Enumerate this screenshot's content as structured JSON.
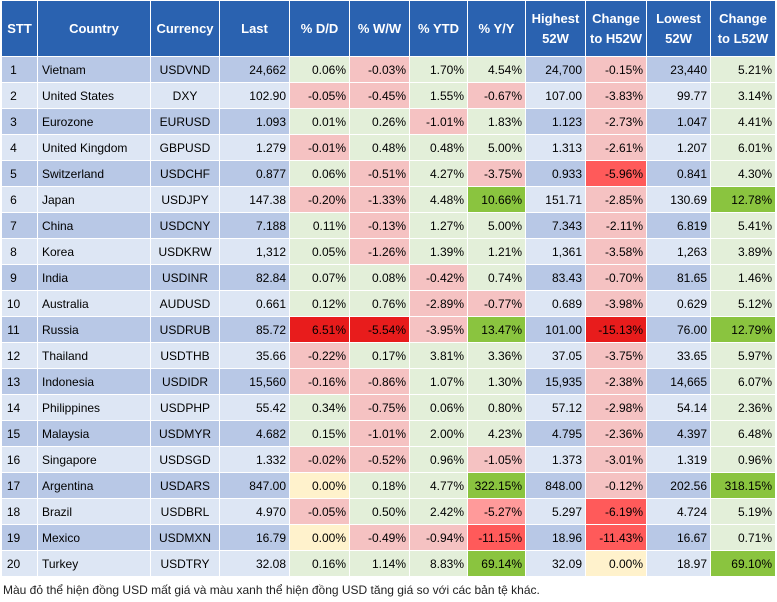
{
  "headers": [
    "STT",
    "Country",
    "Currency",
    "Last",
    "% D/D",
    "% W/W",
    "% YTD",
    "% Y/Y",
    "Highest 52W",
    "Change to H52W",
    "Lowest 52W",
    "Change to L52W"
  ],
  "colors": {
    "header_bg": "#2a62b0",
    "row_odd": "#b8c8e6",
    "row_even": "#dde6f4",
    "green_light": "#e3efd9",
    "green_bright": "#8ac43f",
    "red_light": "#f5c2c2",
    "red_mid": "#ff9a9a",
    "red_strong": "#ff5a5a",
    "red_deep": "#e81c1c",
    "yellow_light": "#fff2cc"
  },
  "rows": [
    {
      "stt": "1",
      "country": "Vietnam",
      "currency": "USDVND",
      "last": "24,662",
      "dd": "0.06%",
      "ww": "-0.03%",
      "ytd": "1.70%",
      "yy": "4.54%",
      "high": "24,700",
      "chigh": "-0.15%",
      "low": "23,440",
      "clow": "5.21%"
    },
    {
      "stt": "2",
      "country": "United States",
      "currency": "DXY",
      "last": "102.90",
      "dd": "-0.05%",
      "ww": "-0.45%",
      "ytd": "1.55%",
      "yy": "-0.67%",
      "high": "107.00",
      "chigh": "-3.83%",
      "low": "99.77",
      "clow": "3.14%"
    },
    {
      "stt": "3",
      "country": "Eurozone",
      "currency": "EURUSD",
      "last": "1.093",
      "dd": "0.01%",
      "ww": "0.26%",
      "ytd": "-1.01%",
      "yy": "1.83%",
      "high": "1.123",
      "chigh": "-2.73%",
      "low": "1.047",
      "clow": "4.41%"
    },
    {
      "stt": "4",
      "country": "United Kingdom",
      "currency": "GBPUSD",
      "last": "1.279",
      "dd": "-0.01%",
      "ww": "0.48%",
      "ytd": "0.48%",
      "yy": "5.00%",
      "high": "1.313",
      "chigh": "-2.61%",
      "low": "1.207",
      "clow": "6.01%"
    },
    {
      "stt": "5",
      "country": "Switzerland",
      "currency": "USDCHF",
      "last": "0.877",
      "dd": "0.06%",
      "ww": "-0.51%",
      "ytd": "4.27%",
      "yy": "-3.75%",
      "high": "0.933",
      "chigh": "-5.96%",
      "low": "0.841",
      "clow": "4.30%"
    },
    {
      "stt": "6",
      "country": "Japan",
      "currency": "USDJPY",
      "last": "147.38",
      "dd": "-0.20%",
      "ww": "-1.33%",
      "ytd": "4.48%",
      "yy": "10.66%",
      "high": "151.71",
      "chigh": "-2.85%",
      "low": "130.69",
      "clow": "12.78%"
    },
    {
      "stt": "7",
      "country": "China",
      "currency": "USDCNY",
      "last": "7.188",
      "dd": "0.11%",
      "ww": "-0.13%",
      "ytd": "1.27%",
      "yy": "5.00%",
      "high": "7.343",
      "chigh": "-2.11%",
      "low": "6.819",
      "clow": "5.41%"
    },
    {
      "stt": "8",
      "country": "Korea",
      "currency": "USDKRW",
      "last": "1,312",
      "dd": "0.05%",
      "ww": "-1.26%",
      "ytd": "1.39%",
      "yy": "1.21%",
      "high": "1,361",
      "chigh": "-3.58%",
      "low": "1,263",
      "clow": "3.89%"
    },
    {
      "stt": "9",
      "country": "India",
      "currency": "USDINR",
      "last": "82.84",
      "dd": "0.07%",
      "ww": "0.08%",
      "ytd": "-0.42%",
      "yy": "0.74%",
      "high": "83.43",
      "chigh": "-0.70%",
      "low": "81.65",
      "clow": "1.46%"
    },
    {
      "stt": "10",
      "country": "Australia",
      "currency": "AUDUSD",
      "last": "0.661",
      "dd": "0.12%",
      "ww": "0.76%",
      "ytd": "-2.89%",
      "yy": "-0.77%",
      "high": "0.689",
      "chigh": "-3.98%",
      "low": "0.629",
      "clow": "5.12%"
    },
    {
      "stt": "11",
      "country": "Russia",
      "currency": "USDRUB",
      "last": "85.72",
      "dd": "6.51%",
      "ww": "-5.54%",
      "ytd": "-3.95%",
      "yy": "13.47%",
      "high": "101.00",
      "chigh": "-15.13%",
      "low": "76.00",
      "clow": "12.79%"
    },
    {
      "stt": "12",
      "country": "Thailand",
      "currency": "USDTHB",
      "last": "35.66",
      "dd": "-0.22%",
      "ww": "0.17%",
      "ytd": "3.81%",
      "yy": "3.36%",
      "high": "37.05",
      "chigh": "-3.75%",
      "low": "33.65",
      "clow": "5.97%"
    },
    {
      "stt": "13",
      "country": "Indonesia",
      "currency": "USDIDR",
      "last": "15,560",
      "dd": "-0.16%",
      "ww": "-0.86%",
      "ytd": "1.07%",
      "yy": "1.30%",
      "high": "15,935",
      "chigh": "-2.38%",
      "low": "14,665",
      "clow": "6.07%"
    },
    {
      "stt": "14",
      "country": "Philippines",
      "currency": "USDPHP",
      "last": "55.42",
      "dd": "0.34%",
      "ww": "-0.75%",
      "ytd": "0.06%",
      "yy": "0.80%",
      "high": "57.12",
      "chigh": "-2.98%",
      "low": "54.14",
      "clow": "2.36%"
    },
    {
      "stt": "15",
      "country": "Malaysia",
      "currency": "USDMYR",
      "last": "4.682",
      "dd": "0.15%",
      "ww": "-1.01%",
      "ytd": "2.00%",
      "yy": "4.23%",
      "high": "4.795",
      "chigh": "-2.36%",
      "low": "4.397",
      "clow": "6.48%"
    },
    {
      "stt": "16",
      "country": "Singapore",
      "currency": "USDSGD",
      "last": "1.332",
      "dd": "-0.02%",
      "ww": "-0.52%",
      "ytd": "0.96%",
      "yy": "-1.05%",
      "high": "1.373",
      "chigh": "-3.01%",
      "low": "1.319",
      "clow": "0.96%"
    },
    {
      "stt": "17",
      "country": "Argentina",
      "currency": "USDARS",
      "last": "847.00",
      "dd": "0.00%",
      "ww": "0.18%",
      "ytd": "4.77%",
      "yy": "322.15%",
      "high": "848.00",
      "chigh": "-0.12%",
      "low": "202.56",
      "clow": "318.15%"
    },
    {
      "stt": "18",
      "country": "Brazil",
      "currency": "USDBRL",
      "last": "4.970",
      "dd": "-0.05%",
      "ww": "0.50%",
      "ytd": "2.42%",
      "yy": "-5.27%",
      "high": "5.297",
      "chigh": "-6.19%",
      "low": "4.724",
      "clow": "5.19%"
    },
    {
      "stt": "19",
      "country": "Mexico",
      "currency": "USDMXN",
      "last": "16.79",
      "dd": "0.00%",
      "ww": "-0.49%",
      "ytd": "-0.94%",
      "yy": "-11.15%",
      "high": "18.96",
      "chigh": "-11.43%",
      "low": "16.67",
      "clow": "0.71%"
    },
    {
      "stt": "20",
      "country": "Turkey",
      "currency": "USDTRY",
      "last": "32.08",
      "dd": "0.16%",
      "ww": "1.14%",
      "ytd": "8.83%",
      "yy": "69.14%",
      "high": "32.09",
      "chigh": "0.00%",
      "low": "18.97",
      "clow": "69.10%"
    }
  ],
  "caption": "Màu đỏ thể hiện đồng USD mất giá và màu xanh thể hiện đồng USD tăng giá so với các bản tệ khác."
}
